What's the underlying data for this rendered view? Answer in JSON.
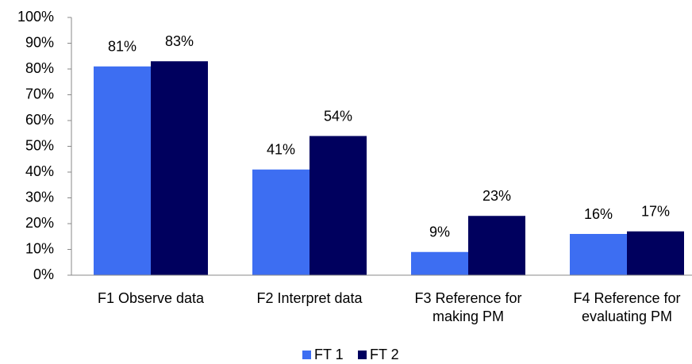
{
  "chart_data": {
    "type": "bar",
    "categories": [
      "F1 Observe data",
      "F2 Interpret data",
      "F3 Reference for making PM",
      "F4 Reference for evaluating PM"
    ],
    "series": [
      {
        "name": "FT 1",
        "color": "#3d6ef2",
        "values": [
          81,
          41,
          9,
          16
        ],
        "value_labels": [
          "81%",
          "41%",
          "9%",
          "16%"
        ]
      },
      {
        "name": "FT 2",
        "color": "#00005e",
        "values": [
          83,
          54,
          23,
          17
        ],
        "value_labels": [
          "83%",
          "54%",
          "23%",
          "17%"
        ]
      }
    ],
    "ylim": [
      0,
      100
    ],
    "yticks": [
      {
        "value": 0,
        "label": "0%"
      },
      {
        "value": 10,
        "label": "10%"
      },
      {
        "value": 20,
        "label": "20%"
      },
      {
        "value": 30,
        "label": "30%"
      },
      {
        "value": 40,
        "label": "40%"
      },
      {
        "value": 50,
        "label": "50%"
      },
      {
        "value": 60,
        "label": "60%"
      },
      {
        "value": 70,
        "label": "70%"
      },
      {
        "value": 80,
        "label": "80%"
      },
      {
        "value": 90,
        "label": "90%"
      },
      {
        "value": 100,
        "label": "100%"
      }
    ],
    "grid": false,
    "legend": "bottom"
  }
}
